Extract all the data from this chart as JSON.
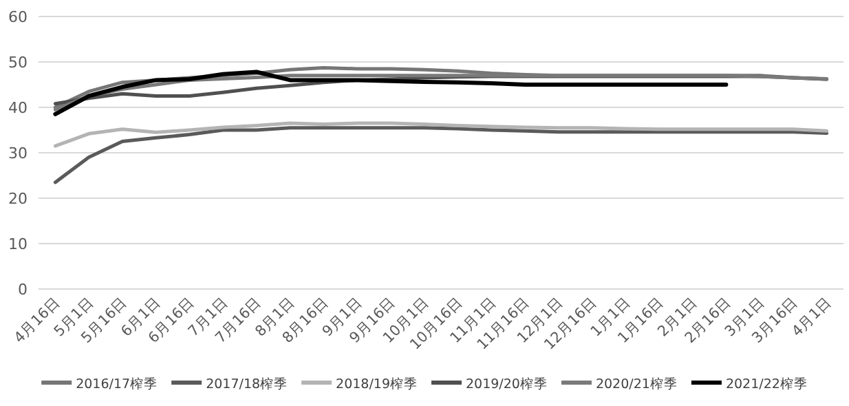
{
  "chart_data": {
    "type": "line",
    "categories": [
      "4月16日",
      "5月1日",
      "5月16日",
      "6月1日",
      "6月16日",
      "7月1日",
      "7月16日",
      "8月1日",
      "8月16日",
      "9月1日",
      "9月16日",
      "10月1日",
      "10月16日",
      "11月1日",
      "11月16日",
      "12月1日",
      "12月16日",
      "1月1日",
      "1月16日",
      "2月1日",
      "2月16日",
      "3月1日",
      "3月16日",
      "4月1日"
    ],
    "series": [
      {
        "name": "2016/17榨季",
        "color": "#767676",
        "values": [
          40,
          43.5,
          45.5,
          46,
          46.5,
          47,
          47.5,
          48.3,
          48.7,
          48.5,
          48.5,
          48.3,
          48,
          47.5,
          47.2,
          47,
          47,
          47,
          47,
          47,
          47,
          47,
          46.5,
          46.2
        ]
      },
      {
        "name": "2017/18榨季",
        "color": "#5a5a5a",
        "values": [
          23.5,
          29,
          32.5,
          33.3,
          34,
          35,
          35,
          35.5,
          35.5,
          35.5,
          35.5,
          35.5,
          35.3,
          35,
          34.8,
          34.6,
          34.6,
          34.6,
          34.6,
          34.6,
          34.6,
          34.6,
          34.6,
          34.3
        ]
      },
      {
        "name": "2018/19榨季",
        "color": "#b4b4b4",
        "values": [
          31.5,
          34.2,
          35.2,
          34.5,
          35,
          35.6,
          36,
          36.5,
          36.3,
          36.5,
          36.5,
          36.3,
          36,
          35.8,
          35.6,
          35.5,
          35.5,
          35.3,
          35.2,
          35.2,
          35.2,
          35.2,
          35.2,
          34.8
        ]
      },
      {
        "name": "2019/20榨季",
        "color": "#505050",
        "values": [
          40.8,
          42,
          43,
          42.5,
          42.5,
          43.3,
          44.2,
          44.8,
          45.5,
          46,
          46.2,
          46.5,
          46.7,
          46.8,
          46.8,
          46.8,
          46.8,
          46.8,
          46.8,
          46.8,
          46.8,
          46.8,
          46.5,
          46.2
        ]
      },
      {
        "name": "2020/21榨季",
        "color": "#7a7a7a",
        "values": [
          39.5,
          42.5,
          44,
          45,
          46,
          46.3,
          46.6,
          47,
          47,
          47,
          47,
          47,
          47,
          47,
          47,
          47,
          47,
          47,
          47,
          47,
          47,
          46.8,
          46.5,
          46.3
        ]
      },
      {
        "name": "2021/22榨季",
        "color": "#000000",
        "values": [
          38.5,
          42.5,
          44.5,
          46,
          46.2,
          47.3,
          47.8,
          46,
          46,
          46,
          45.8,
          45.6,
          45.5,
          45.3,
          45,
          45,
          45,
          45,
          45,
          45,
          45,
          null,
          null,
          null
        ]
      }
    ],
    "ylim": [
      0,
      60
    ],
    "yticks": [
      0,
      10,
      20,
      30,
      40,
      50,
      60
    ],
    "grid": "y",
    "legend": "bottom"
  }
}
